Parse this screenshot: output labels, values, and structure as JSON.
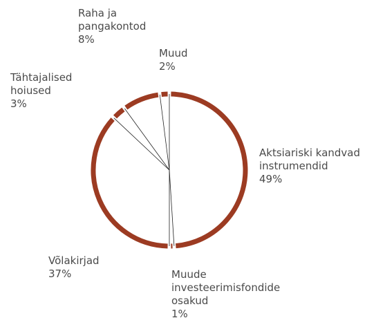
{
  "chart_data": {
    "type": "pie",
    "categories": [
      "Aktsiariski kandvad instrumendid",
      "Muude investeerimisfondide osakud",
      "Võlakirjad",
      "Tähtajalised hoiused",
      "Raha ja pangakontod",
      "Muud"
    ],
    "values": [
      49,
      1,
      37,
      3,
      8,
      2
    ],
    "value_labels": [
      "49%",
      "1%",
      "37%",
      "3%",
      "8%",
      "2%"
    ],
    "color": "#9c3b22"
  }
}
